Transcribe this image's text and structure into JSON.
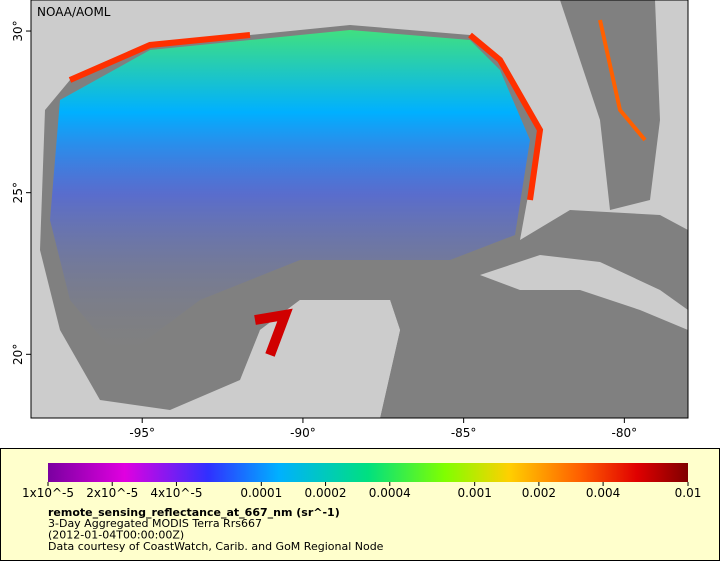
{
  "map": {
    "credit": "NOAA/AOML",
    "xlim": [
      -98.46,
      -78.02
    ],
    "ylim": [
      18.03,
      30.96
    ],
    "xticks": [
      {
        "value": -95,
        "label": "-95°"
      },
      {
        "value": -90,
        "label": "-90°"
      },
      {
        "value": -85,
        "label": "-85°"
      },
      {
        "value": -80,
        "label": "-80°"
      }
    ],
    "yticks": [
      {
        "value": 20,
        "label": "20°"
      },
      {
        "value": 25,
        "label": "25°"
      },
      {
        "value": 30,
        "label": "30°"
      }
    ]
  },
  "legend": {
    "scale": "log",
    "lim": [
      1e-05,
      0.01
    ],
    "ticks": [
      {
        "value": 1e-05,
        "label": "1x10^-5"
      },
      {
        "value": 2e-05,
        "label": "2x10^-5"
      },
      {
        "value": 4e-05,
        "label": "4x10^-5"
      },
      0.0001,
      0.0002,
      0.0004,
      0.001,
      0.002,
      0.004,
      0.01
    ],
    "title": "remote_sensing_reflectance_at_667_nm (sr^-1)",
    "lines": [
      "3-Day Aggregated MODIS Terra Rrs667",
      "(2012-01-04T00:00:00Z)",
      "Data courtesy of CoastWatch, Carib. and GoM Regional Node"
    ]
  }
}
